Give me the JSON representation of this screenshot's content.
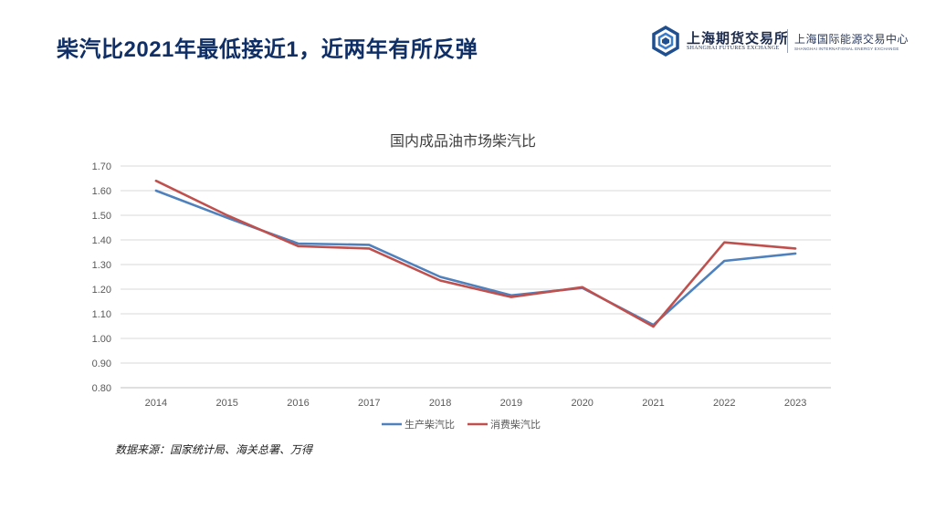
{
  "slide": {
    "title": "柴汽比2021年最低接近1，近两年有所反弹",
    "source": "数据来源：国家统计局、海关总署、万得"
  },
  "logo": {
    "name_cn": "上海期货交易所",
    "name_en": "SHANGHAI FUTURES EXCHANGE",
    "sub_cn": "上海国际能源交易中心",
    "sub_en": "SHANGHAI INTERNATIONAL ENERGY EXCHANGE"
  },
  "colors": {
    "title": "#0f2f66",
    "series_production": "#4f81bd",
    "series_consumption": "#c0504d",
    "grid": "#d9d9d9"
  },
  "chart_data": {
    "type": "line",
    "title": "国内成品油市场柴汽比",
    "xlabel": "",
    "ylabel": "",
    "categories": [
      "2014",
      "2015",
      "2016",
      "2017",
      "2018",
      "2019",
      "2020",
      "2021",
      "2022",
      "2023"
    ],
    "series": [
      {
        "name": "生产柴汽比",
        "values": [
          1.6,
          1.49,
          1.385,
          1.38,
          1.25,
          1.175,
          1.205,
          1.055,
          1.315,
          1.345
        ]
      },
      {
        "name": "消费柴汽比",
        "values": [
          1.64,
          1.5,
          1.375,
          1.365,
          1.235,
          1.168,
          1.208,
          1.048,
          1.39,
          1.365
        ]
      }
    ],
    "ylim": [
      0.8,
      1.7
    ],
    "yticks": [
      "0.80",
      "0.90",
      "1.00",
      "1.10",
      "1.20",
      "1.30",
      "1.40",
      "1.50",
      "1.60",
      "1.70"
    ],
    "grid": "horizontal",
    "legend": "bottom-center"
  }
}
